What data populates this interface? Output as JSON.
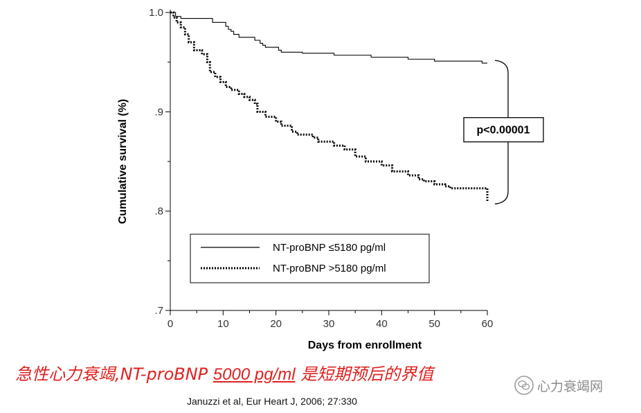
{
  "chart_data": {
    "type": "line",
    "title": "",
    "xlabel": "Days from enrollment",
    "ylabel": "Cumulative survival (%)",
    "xlim": [
      0,
      60
    ],
    "ylim": [
      0.7,
      1.0
    ],
    "x_ticks": [
      0,
      10,
      20,
      30,
      40,
      50,
      60
    ],
    "y_ticks": [
      {
        "value": 1.0,
        "label": "1.0"
      },
      {
        "value": 0.9,
        "label": ".9"
      },
      {
        "value": 0.8,
        "label": ".8"
      },
      {
        "value": 0.7,
        "label": ".7"
      }
    ],
    "legend_position": "bottom-center",
    "series": [
      {
        "name": "NT-proBNP ≤5180 pg/ml",
        "style": "solid",
        "points": [
          [
            0,
            1.0
          ],
          [
            1,
            0.996
          ],
          [
            2,
            0.994
          ],
          [
            7,
            0.994
          ],
          [
            8,
            0.99
          ],
          [
            10,
            0.99
          ],
          [
            10.5,
            0.986
          ],
          [
            11,
            0.983
          ],
          [
            11.5,
            0.981
          ],
          [
            12,
            0.978
          ],
          [
            13,
            0.975
          ],
          [
            15,
            0.975
          ],
          [
            16,
            0.972
          ],
          [
            17,
            0.969
          ],
          [
            17.5,
            0.967
          ],
          [
            18,
            0.965
          ],
          [
            20,
            0.965
          ],
          [
            20.5,
            0.962
          ],
          [
            21,
            0.96
          ],
          [
            24,
            0.96
          ],
          [
            25,
            0.959
          ],
          [
            30,
            0.959
          ],
          [
            31,
            0.957
          ],
          [
            37,
            0.957
          ],
          [
            38,
            0.955
          ],
          [
            44,
            0.955
          ],
          [
            45,
            0.953
          ],
          [
            49,
            0.953
          ],
          [
            50,
            0.951
          ],
          [
            58,
            0.951
          ],
          [
            59,
            0.949
          ],
          [
            60,
            0.949
          ]
        ]
      },
      {
        "name": "NT-proBNP >5180 pg/ml",
        "style": "dotted",
        "points": [
          [
            0,
            1.0
          ],
          [
            0.6,
            0.995
          ],
          [
            1.2,
            0.99
          ],
          [
            2,
            0.985
          ],
          [
            2.8,
            0.978
          ],
          [
            3.5,
            0.97
          ],
          [
            4.5,
            0.962
          ],
          [
            6,
            0.958
          ],
          [
            7,
            0.95
          ],
          [
            7.5,
            0.94
          ],
          [
            8.5,
            0.935
          ],
          [
            9.5,
            0.93
          ],
          [
            10.5,
            0.925
          ],
          [
            11.5,
            0.922
          ],
          [
            13,
            0.918
          ],
          [
            14,
            0.915
          ],
          [
            15,
            0.912
          ],
          [
            16,
            0.908
          ],
          [
            16.5,
            0.9
          ],
          [
            18,
            0.895
          ],
          [
            20,
            0.89
          ],
          [
            21,
            0.886
          ],
          [
            23,
            0.88
          ],
          [
            24,
            0.877
          ],
          [
            27,
            0.874
          ],
          [
            28,
            0.87
          ],
          [
            31,
            0.866
          ],
          [
            33,
            0.862
          ],
          [
            35,
            0.855
          ],
          [
            37,
            0.85
          ],
          [
            40,
            0.846
          ],
          [
            42,
            0.84
          ],
          [
            45,
            0.836
          ],
          [
            47,
            0.832
          ],
          [
            48,
            0.83
          ],
          [
            50,
            0.827
          ],
          [
            52,
            0.825
          ],
          [
            53,
            0.823
          ],
          [
            57,
            0.823
          ],
          [
            60,
            0.82
          ],
          [
            60,
            0.81
          ]
        ]
      }
    ],
    "annotations": [
      {
        "text": "p<0.00001",
        "type": "p-value"
      }
    ]
  },
  "caption": {
    "prefix": "急性心力衰竭,NT-proBNP ",
    "threshold": "5000 pg/ml",
    "suffix": " 是短期预后的界值"
  },
  "citation": "Januzzi et al, Eur Heart J, 2006; 27:330",
  "watermark": "心力衰竭网",
  "colors": {
    "axis": "#000000",
    "series": "#000000",
    "caption": "#e02020",
    "watermark": "#8a8a8a"
  }
}
